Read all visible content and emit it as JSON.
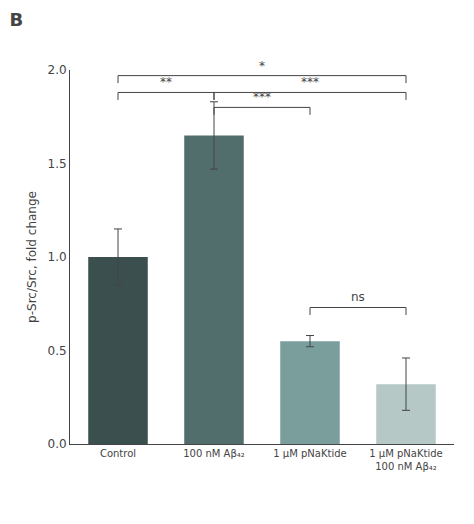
{
  "chart_data": {
    "type": "bar",
    "title": "B",
    "categories": [
      "Control",
      "100 nM Aβ₄₂",
      "1 μM pNaKtide",
      "1 μM pNaKtide\n100 nM Aβ₄₂"
    ],
    "values": [
      1.0,
      1.65,
      0.55,
      0.32
    ],
    "errors": [
      0.15,
      0.18,
      0.03,
      0.14
    ],
    "colors": [
      "#3a4f4e",
      "#526e6c",
      "#7a9e9c",
      "#b5c8c6"
    ],
    "ylabel": "p-Src/Src, fold change",
    "ylim": [
      0,
      2.0
    ],
    "yticks": [
      {
        "value": 0.0,
        "label": "0.0"
      },
      0.5,
      {
        "value": 1.0,
        "label": "1.0"
      },
      1.5,
      {
        "value": 2.0,
        "label": "2.0"
      }
    ],
    "grid": false,
    "annotations": [
      {
        "text": "*",
        "x": [
          "Control",
          "1 μM pNaKtide\n100 nM Aβ₄₂"
        ],
        "y": 1.97
      },
      {
        "text": "**",
        "x": [
          "Control",
          "100 nM Aβ₄₂"
        ],
        "y": 1.88
      },
      {
        "text": "***",
        "x": [
          "100 nM Aβ₄₂",
          "1 μM pNaKtide"
        ],
        "y": 1.8
      },
      {
        "text": "***",
        "x": [
          "100 nM Aβ₄₂",
          "1 μM pNaKtide\n100 nM Aβ₄₂"
        ],
        "y": 1.88
      },
      {
        "text": "ns",
        "x": [
          "1 μM pNaKtide",
          "1 μM pNaKtide\n100 nM Aβ₄₂"
        ],
        "y": 0.73
      }
    ]
  }
}
